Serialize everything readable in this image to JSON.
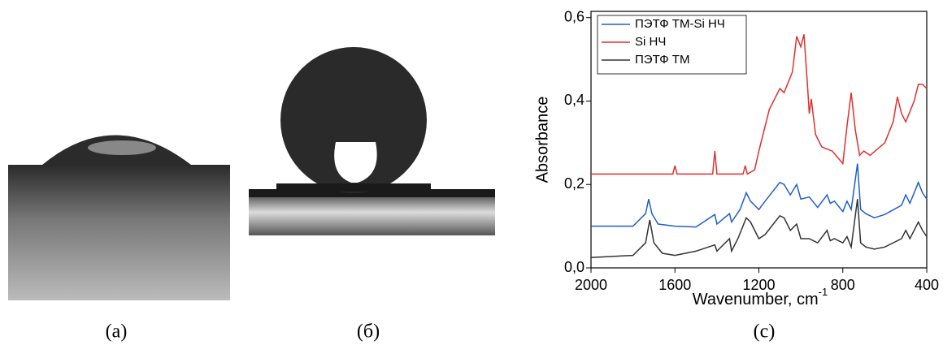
{
  "panel_labels": [
    "(a)",
    "(б)",
    "(c)"
  ],
  "chart_data": {
    "type": "line",
    "xlabel": "Wavenumber, cm",
    "xlabel_sup": "-1",
    "ylabel": "Absorbance",
    "xlim": [
      2000,
      400
    ],
    "xticks": [
      2000,
      1600,
      1200,
      800,
      400
    ],
    "ylim": [
      0,
      0.615
    ],
    "yticks": [
      {
        "value": 0,
        "label": "0,0"
      },
      {
        "value": 0.2,
        "label": "0,2"
      },
      {
        "value": 0.4,
        "label": "0,4"
      },
      {
        "value": 0.6,
        "label": "0,6"
      }
    ],
    "legend": "upper left",
    "series": [
      {
        "name": "ПЭТФ ТМ-Si НЧ",
        "color": "#1f5fc8",
        "x": [
          2000,
          1800,
          1740,
          1725,
          1710,
          1680,
          1600,
          1500,
          1410,
          1400,
          1340,
          1330,
          1290,
          1260,
          1240,
          1200,
          1170,
          1100,
          1080,
          1050,
          1020,
          1000,
          960,
          920,
          875,
          860,
          840,
          800,
          780,
          760,
          730,
          715,
          690,
          650,
          600,
          520,
          500,
          480,
          440,
          420,
          400
        ],
        "values": [
          0.1,
          0.1,
          0.13,
          0.165,
          0.13,
          0.105,
          0.1,
          0.098,
          0.128,
          0.105,
          0.13,
          0.11,
          0.14,
          0.18,
          0.16,
          0.14,
          0.16,
          0.205,
          0.2,
          0.175,
          0.2,
          0.165,
          0.17,
          0.145,
          0.175,
          0.155,
          0.16,
          0.135,
          0.16,
          0.14,
          0.25,
          0.14,
          0.13,
          0.12,
          0.128,
          0.15,
          0.175,
          0.155,
          0.205,
          0.18,
          0.165
        ]
      },
      {
        "name": "Si НЧ",
        "color": "#e0302f",
        "x": [
          2000,
          1610,
          1600,
          1590,
          1420,
          1410,
          1400,
          1275,
          1265,
          1255,
          1220,
          1200,
          1150,
          1100,
          1080,
          1040,
          1020,
          1000,
          985,
          970,
          960,
          950,
          930,
          900,
          850,
          800,
          780,
          760,
          740,
          720,
          700,
          670,
          600,
          560,
          540,
          520,
          500,
          460,
          440,
          420,
          400
        ],
        "values": [
          0.225,
          0.225,
          0.245,
          0.225,
          0.225,
          0.28,
          0.225,
          0.225,
          0.245,
          0.225,
          0.235,
          0.28,
          0.38,
          0.43,
          0.42,
          0.47,
          0.555,
          0.53,
          0.56,
          0.45,
          0.37,
          0.405,
          0.32,
          0.29,
          0.28,
          0.25,
          0.34,
          0.42,
          0.33,
          0.27,
          0.28,
          0.27,
          0.3,
          0.35,
          0.41,
          0.37,
          0.35,
          0.4,
          0.44,
          0.44,
          0.43
        ]
      },
      {
        "name": "ПЭТФ ТМ",
        "color": "#333333",
        "x": [
          2000,
          1800,
          1740,
          1720,
          1700,
          1660,
          1600,
          1500,
          1410,
          1400,
          1340,
          1330,
          1300,
          1260,
          1240,
          1200,
          1170,
          1100,
          1080,
          1050,
          1020,
          1000,
          960,
          920,
          875,
          860,
          840,
          800,
          780,
          760,
          730,
          715,
          690,
          650,
          600,
          520,
          500,
          480,
          440,
          420,
          400
        ],
        "values": [
          0.025,
          0.03,
          0.06,
          0.115,
          0.06,
          0.035,
          0.03,
          0.04,
          0.055,
          0.04,
          0.07,
          0.04,
          0.07,
          0.12,
          0.11,
          0.07,
          0.08,
          0.125,
          0.12,
          0.09,
          0.105,
          0.07,
          0.07,
          0.06,
          0.09,
          0.065,
          0.07,
          0.06,
          0.075,
          0.05,
          0.165,
          0.06,
          0.05,
          0.045,
          0.05,
          0.07,
          0.09,
          0.07,
          0.11,
          0.09,
          0.075
        ]
      }
    ]
  }
}
